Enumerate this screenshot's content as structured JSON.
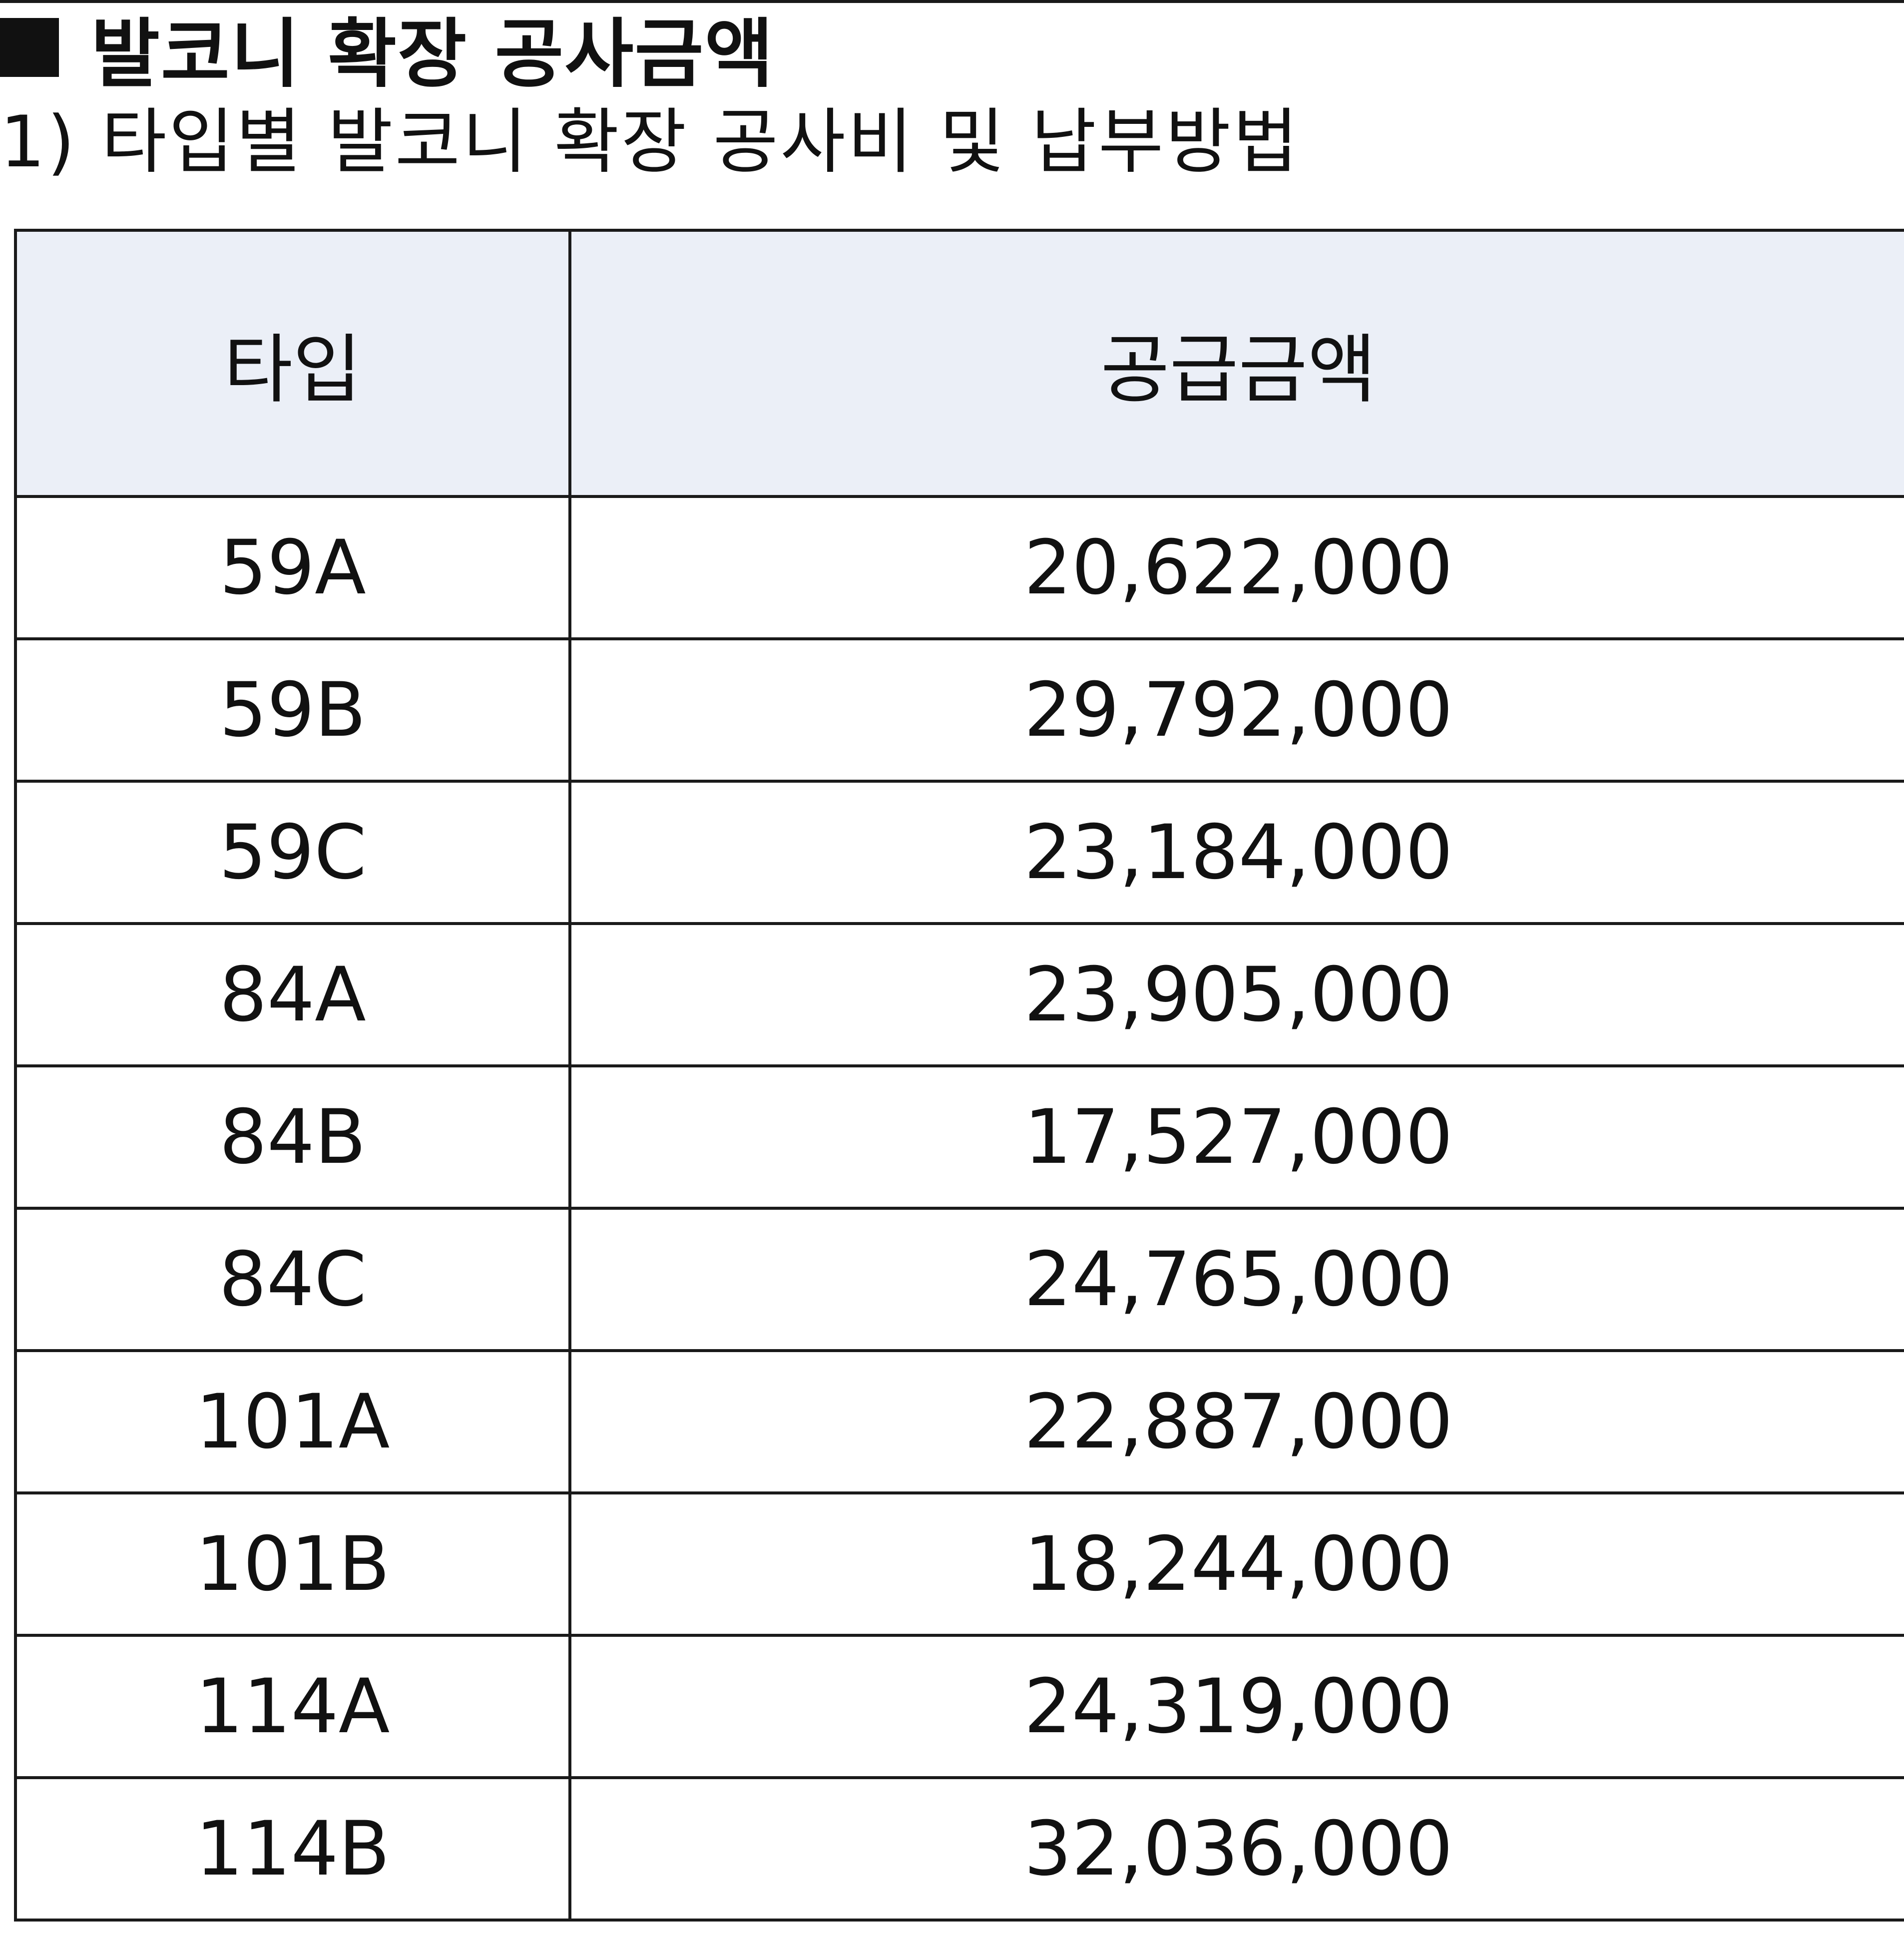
{
  "section": {
    "icon": "black-square-icon",
    "title": "발코니 확장 공사금액"
  },
  "subtitle": "1) 타입별 발코니 확장 공사비 및 납부방법",
  "table": {
    "headers": [
      "타입",
      "공급금액"
    ],
    "rows": [
      {
        "type": "59A",
        "amount": "20,622,000"
      },
      {
        "type": "59B",
        "amount": "29,792,000"
      },
      {
        "type": "59C",
        "amount": "23,184,000"
      },
      {
        "type": "84A",
        "amount": "23,905,000"
      },
      {
        "type": "84B",
        "amount": "17,527,000"
      },
      {
        "type": "84C",
        "amount": "24,765,000"
      },
      {
        "type": "101A",
        "amount": "22,887,000"
      },
      {
        "type": "101B",
        "amount": "18,244,000"
      },
      {
        "type": "114A",
        "amount": "24,319,000"
      },
      {
        "type": "114B",
        "amount": "32,036,000"
      }
    ]
  },
  "colors": {
    "header_background": "#ebeff7",
    "border": "#1a1a1a",
    "text": "#111111"
  }
}
